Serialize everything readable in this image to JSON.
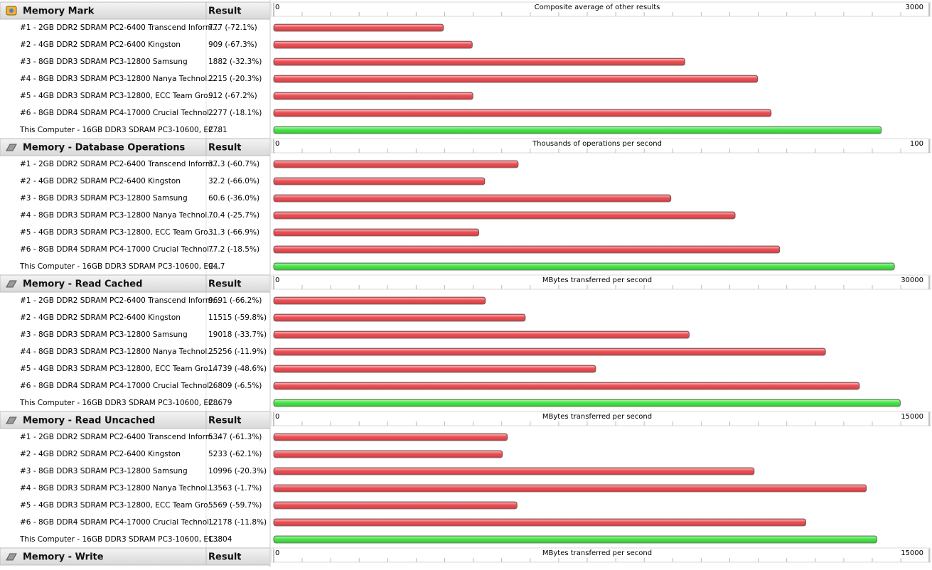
{
  "chart_data": [
    {
      "type": "bar",
      "title": "Memory Mark",
      "column_header": "Result",
      "x_label": "Composite average of other results",
      "xlim": [
        0,
        3000
      ],
      "xticks": [
        0,
        3000
      ],
      "categories": [
        "#1 - 2GB DDR2 SDRAM PC2-6400 Transcend Inform...",
        "#2 - 4GB DDR2 SDRAM PC2-6400 Kingston",
        "#3 - 8GB DDR3 SDRAM PC3-12800 Samsung",
        "#4 - 8GB DDR3 SDRAM PC3-12800 Nanya Technol...",
        "#5 - 4GB DDR3 SDRAM PC3-12800, ECC Team Gro...",
        "#6 - 8GB DDR4 SDRAM PC4-17000 Crucial Technol...",
        "This Computer - 16GB DDR3 SDRAM PC3-10600, EC..."
      ],
      "values": [
        777,
        909,
        1882,
        2215,
        912,
        2277,
        2781
      ],
      "value_labels": [
        "777 (-72.1%)",
        "909 (-67.3%)",
        "1882 (-32.3%)",
        "2215 (-20.3%)",
        "912 (-67.2%)",
        "2277 (-18.1%)",
        "2781"
      ],
      "colors": [
        "#e8474c",
        "#e8474c",
        "#e8474c",
        "#e8474c",
        "#e8474c",
        "#e8474c",
        "#3ee03e"
      ]
    },
    {
      "type": "bar",
      "title": "Memory - Database Operations",
      "column_header": "Result",
      "x_label": "Thousands of operations per second",
      "xlim": [
        0,
        100
      ],
      "xticks": [
        0,
        100
      ],
      "categories": [
        "#1 - 2GB DDR2 SDRAM PC2-6400 Transcend Inform...",
        "#2 - 4GB DDR2 SDRAM PC2-6400 Kingston",
        "#3 - 8GB DDR3 SDRAM PC3-12800 Samsung",
        "#4 - 8GB DDR3 SDRAM PC3-12800 Nanya Technol...",
        "#5 - 4GB DDR3 SDRAM PC3-12800, ECC Team Gro...",
        "#6 - 8GB DDR4 SDRAM PC4-17000 Crucial Technol...",
        "This Computer - 16GB DDR3 SDRAM PC3-10600, EC..."
      ],
      "values": [
        37.3,
        32.2,
        60.6,
        70.4,
        31.3,
        77.2,
        94.7
      ],
      "value_labels": [
        "37.3 (-60.7%)",
        "32.2 (-66.0%)",
        "60.6 (-36.0%)",
        "70.4 (-25.7%)",
        "31.3 (-66.9%)",
        "77.2 (-18.5%)",
        "94.7"
      ],
      "colors": [
        "#e8474c",
        "#e8474c",
        "#e8474c",
        "#e8474c",
        "#e8474c",
        "#e8474c",
        "#3ee03e"
      ]
    },
    {
      "type": "bar",
      "title": "Memory - Read Cached",
      "column_header": "Result",
      "x_label": "MBytes transferred per second",
      "xlim": [
        0,
        30000
      ],
      "xticks": [
        0,
        30000
      ],
      "categories": [
        "#1 - 2GB DDR2 SDRAM PC2-6400 Transcend Inform...",
        "#2 - 4GB DDR2 SDRAM PC2-6400 Kingston",
        "#3 - 8GB DDR3 SDRAM PC3-12800 Samsung",
        "#4 - 8GB DDR3 SDRAM PC3-12800 Nanya Technol...",
        "#5 - 4GB DDR3 SDRAM PC3-12800, ECC Team Gro...",
        "#6 - 8GB DDR4 SDRAM PC4-17000 Crucial Technol...",
        "This Computer - 16GB DDR3 SDRAM PC3-10600, EC..."
      ],
      "values": [
        9691,
        11515,
        19018,
        25256,
        14739,
        26809,
        28679
      ],
      "value_labels": [
        "9691 (-66.2%)",
        "11515 (-59.8%)",
        "19018 (-33.7%)",
        "25256 (-11.9%)",
        "14739 (-48.6%)",
        "26809 (-6.5%)",
        "28679"
      ],
      "colors": [
        "#e8474c",
        "#e8474c",
        "#e8474c",
        "#e8474c",
        "#e8474c",
        "#e8474c",
        "#3ee03e"
      ]
    },
    {
      "type": "bar",
      "title": "Memory - Read Uncached",
      "column_header": "Result",
      "x_label": "MBytes transferred per second",
      "xlim": [
        0,
        15000
      ],
      "xticks": [
        0,
        15000
      ],
      "categories": [
        "#1 - 2GB DDR2 SDRAM PC2-6400 Transcend Inform...",
        "#2 - 4GB DDR2 SDRAM PC2-6400 Kingston",
        "#3 - 8GB DDR3 SDRAM PC3-12800 Samsung",
        "#4 - 8GB DDR3 SDRAM PC3-12800 Nanya Technol...",
        "#5 - 4GB DDR3 SDRAM PC3-12800, ECC Team Gro...",
        "#6 - 8GB DDR4 SDRAM PC4-17000 Crucial Technol...",
        "This Computer - 16GB DDR3 SDRAM PC3-10600, EC..."
      ],
      "values": [
        5347,
        5233,
        10996,
        13563,
        5569,
        12178,
        13804
      ],
      "value_labels": [
        "5347 (-61.3%)",
        "5233 (-62.1%)",
        "10996 (-20.3%)",
        "13563 (-1.7%)",
        "5569 (-59.7%)",
        "12178 (-11.8%)",
        "13804"
      ],
      "colors": [
        "#e8474c",
        "#e8474c",
        "#e8474c",
        "#e8474c",
        "#e8474c",
        "#e8474c",
        "#3ee03e"
      ]
    },
    {
      "type": "bar",
      "title": "Memory - Write",
      "column_header": "Result",
      "x_label": "MBytes transferred per second",
      "xlim": [
        0,
        15000
      ],
      "xticks": [
        0,
        15000
      ],
      "categories": [],
      "values": [],
      "value_labels": [],
      "colors": []
    }
  ]
}
